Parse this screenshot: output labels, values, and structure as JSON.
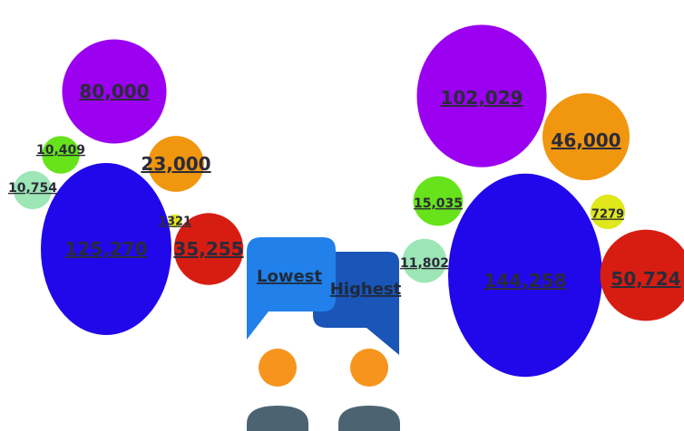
{
  "chart_data": [
    {
      "type": "bubble",
      "group": "Lowest",
      "values": [
        80000,
        10409,
        10754,
        23000,
        1321,
        125270,
        35255
      ],
      "labels": [
        "80,000",
        "10,409",
        "10,754",
        "23,000",
        "1321",
        "125,270",
        "35,255"
      ],
      "colors": [
        "#9b00f0",
        "#66e31a",
        "#9de6b6",
        "#f0960f",
        "#e0e71a",
        "#2008ea",
        "#d71d12"
      ]
    },
    {
      "type": "bubble",
      "group": "Highest",
      "values": [
        102029,
        15035,
        11802,
        46000,
        7279,
        144258,
        50724
      ],
      "labels": [
        "102,029",
        "15,035",
        "11,802",
        "46,000",
        "7279",
        "144,258",
        "50,724"
      ],
      "colors": [
        "#9b00f0",
        "#66e31a",
        "#9de6b6",
        "#f0960f",
        "#e0e71a",
        "#2008ea",
        "#d71d12"
      ]
    }
  ],
  "legend": {
    "lowest_label": "Lowest",
    "highest_label": "Highest",
    "lowest_color": "#2180ea",
    "highest_color": "#1a55b8",
    "head_color": "#f7941d",
    "body_color": "#4c6472"
  }
}
